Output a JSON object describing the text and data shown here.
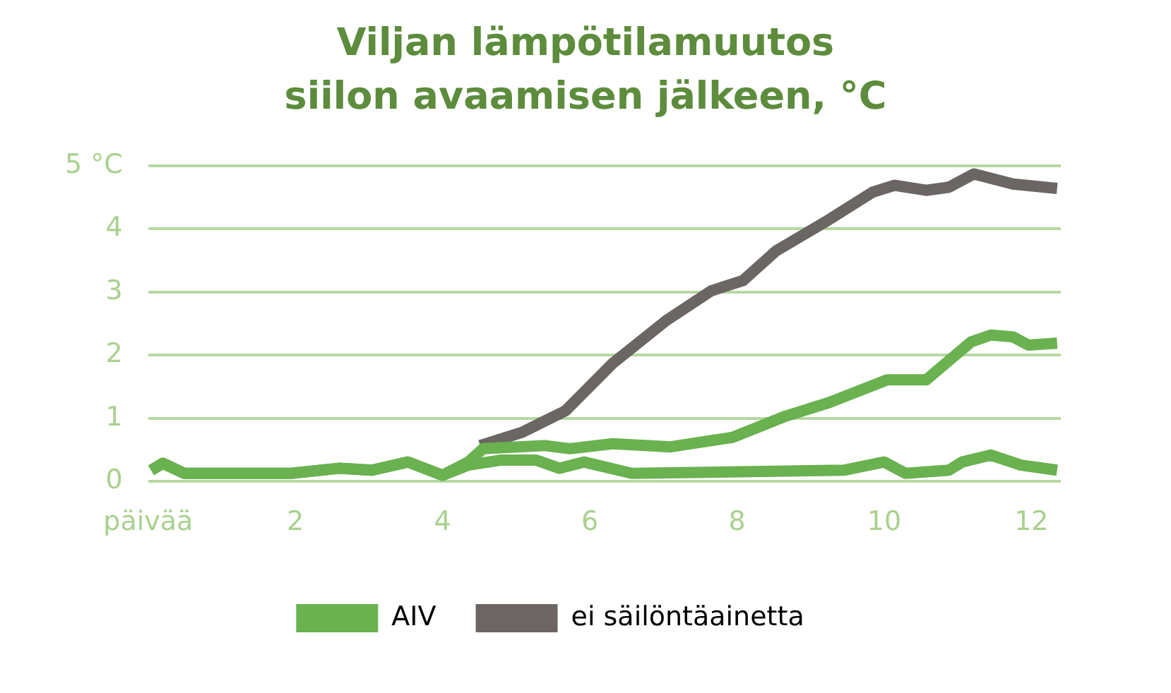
{
  "chart_data": {
    "type": "line",
    "title": "Viljan lämpötilamuutos siilon avaamisen jälkeen, °C",
    "xlim": [
      0,
      12.4
    ],
    "xticks": [
      {
        "value": 0,
        "label": "päivää"
      },
      2,
      4,
      6,
      8,
      10,
      12
    ],
    "ylim": [
      0,
      5
    ],
    "yticks": [
      0,
      1,
      2,
      3,
      4,
      {
        "value": 5,
        "label": "5 °C"
      }
    ],
    "grid": "y",
    "legend": "bottom",
    "marker": "none",
    "line_style": "solid",
    "series": [
      {
        "name": "AIV",
        "color": "#6ab150",
        "x": [
          0.04,
          0.2,
          0.49,
          1.94,
          2.59,
          3.04,
          3.53,
          4.0,
          4.35,
          4.55,
          5.39,
          5.73,
          6.31,
          7.1,
          7.94,
          8.67,
          9.25,
          10.04,
          10.57,
          11.18,
          11.45,
          11.75,
          11.96,
          12.35
        ],
        "values": [
          0.18,
          0.29,
          0.13,
          0.13,
          0.21,
          0.18,
          0.31,
          0.1,
          0.31,
          0.52,
          0.57,
          0.52,
          0.6,
          0.55,
          0.7,
          1.04,
          1.25,
          1.61,
          1.61,
          2.21,
          2.32,
          2.29,
          2.16,
          2.19
        ]
      },
      {
        "color": "#6ab150",
        "x": [
          0.04,
          0.2,
          0.49,
          1.94,
          2.59,
          3.04,
          3.53,
          4.0,
          4.35,
          4.8,
          5.27,
          5.59,
          5.92,
          6.57,
          9.45,
          10.0,
          10.29,
          10.88,
          11.06,
          11.45,
          11.86,
          12.35
        ],
        "values": [
          0.18,
          0.29,
          0.13,
          0.13,
          0.21,
          0.18,
          0.31,
          0.1,
          0.26,
          0.34,
          0.34,
          0.21,
          0.31,
          0.13,
          0.18,
          0.31,
          0.13,
          0.18,
          0.31,
          0.42,
          0.26,
          0.18
        ]
      },
      {
        "name": "ei säilöntäainetta",
        "color": "#6b6663",
        "x": [
          4.51,
          5.08,
          5.67,
          6.31,
          7.04,
          7.65,
          8.08,
          8.53,
          9.2,
          9.84,
          10.14,
          10.57,
          10.88,
          11.22,
          11.75,
          12.35
        ],
        "values": [
          0.57,
          0.78,
          1.12,
          1.87,
          2.55,
          3.02,
          3.18,
          3.65,
          4.11,
          4.58,
          4.69,
          4.61,
          4.66,
          4.87,
          4.71,
          4.64
        ]
      }
    ]
  }
}
